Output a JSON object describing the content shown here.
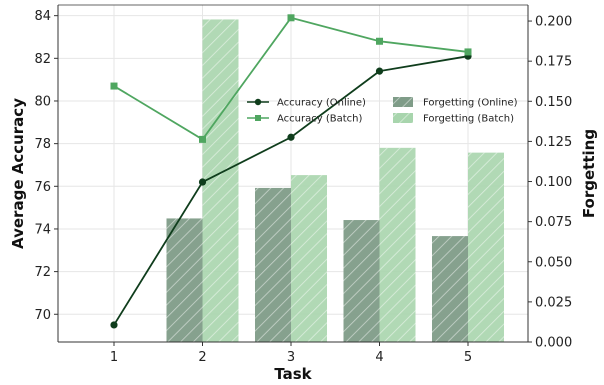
{
  "chart_data": {
    "type": "bar+line",
    "categories": [
      "1",
      "2",
      "3",
      "4",
      "5"
    ],
    "xlabel": "Task",
    "ylabel_left": "Average Accuracy",
    "ylabel_right": "Forgetting",
    "ylim_left": [
      68.7,
      84.5
    ],
    "ylim_right": [
      0.0,
      0.21
    ],
    "yticks_left": [
      "70",
      "72",
      "74",
      "76",
      "78",
      "80",
      "82",
      "84"
    ],
    "yticks_right": [
      "0.000",
      "0.025",
      "0.050",
      "0.075",
      "0.100",
      "0.125",
      "0.150",
      "0.175",
      "0.200"
    ],
    "grid": true,
    "legend_position": "upper-center-right",
    "colors": {
      "accuracy_online": "#0f3d1c",
      "accuracy_batch": "#4fa660",
      "forgetting_online": "#7f9c88",
      "forgetting_batch": "#a8d5ad"
    },
    "series": [
      {
        "name": "Accuracy (Online)",
        "kind": "line",
        "axis": "left",
        "marker": "circle",
        "values": [
          69.5,
          76.2,
          78.3,
          81.4,
          82.1
        ]
      },
      {
        "name": "Accuracy (Batch)",
        "kind": "line",
        "axis": "left",
        "marker": "square",
        "values": [
          80.7,
          78.2,
          83.9,
          82.8,
          82.3
        ]
      },
      {
        "name": "Forgetting (Online)",
        "kind": "bar",
        "axis": "right",
        "values": [
          null,
          0.077,
          0.096,
          0.076,
          0.066
        ]
      },
      {
        "name": "Forgetting (Batch)",
        "kind": "bar",
        "axis": "right",
        "hatch": true,
        "values": [
          null,
          0.201,
          0.104,
          0.121,
          0.118
        ]
      }
    ]
  }
}
